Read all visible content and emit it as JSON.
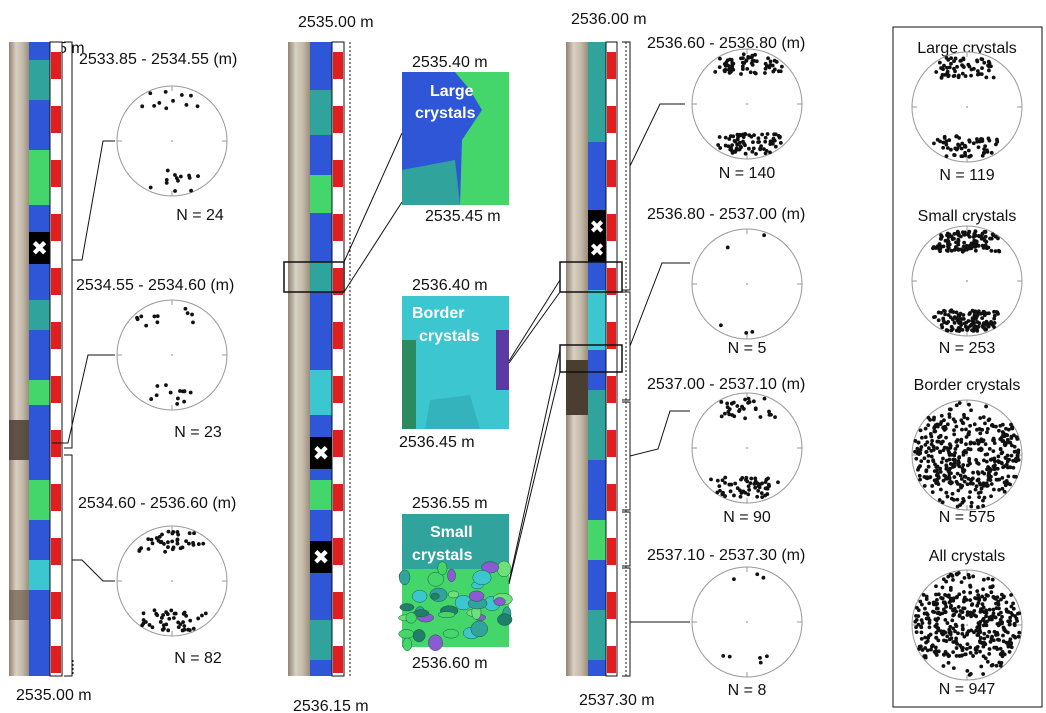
{
  "colors": {
    "core_light": "#c9bfae",
    "core_dark": "#4a3e31",
    "map_blue": "#2f56d6",
    "map_teal": "#2fa39c",
    "map_green": "#44d66a",
    "map_cyan": "#3cc7d0",
    "scale_red": "#e01e1e",
    "point": "#111111",
    "stereonet_edge": "#999999"
  },
  "icons": {
    "excluded_marker": "x-icon"
  },
  "columns": [
    {
      "top": "2533.85 m",
      "bottom": "2535.00 m"
    },
    {
      "top": "2535.00 m",
      "bottom": "2536.15 m"
    },
    {
      "top": "2536.00 m",
      "bottom": "2537.30 m"
    }
  ],
  "insets": [
    {
      "depth_top": "2535.40 m",
      "label_line1": "Large",
      "label_line2": "crystals",
      "depth_bottom": "2535.45 m"
    },
    {
      "depth_top": "2536.40 m",
      "label_line1": "Border",
      "label_line2": "crystals",
      "depth_bottom": "2536.45 m"
    },
    {
      "depth_top": "2536.55 m",
      "label_line1": "Small",
      "label_line2": "crystals",
      "depth_bottom": "2536.60 m"
    }
  ],
  "stereonets": [
    {
      "range": "2533.85 - 2534.55 (m)",
      "count": "N = 24"
    },
    {
      "range": "2534.55 - 2534.60 (m)",
      "count": "N = 23"
    },
    {
      "range": "2534.60 - 2536.60 (m)",
      "count": "N = 82"
    },
    {
      "range": "2536.60 - 2536.80 (m)",
      "count": "N = 140"
    },
    {
      "range": "2536.80 - 2537.00 (m)",
      "count": "N = 5"
    },
    {
      "range": "2537.00 - 2537.10 (m)",
      "count": "N = 90"
    },
    {
      "range": "2537.10 - 2537.30 (m)",
      "count": "N = 8"
    }
  ],
  "summary": [
    {
      "title": "Large crystals",
      "count": "N = 119"
    },
    {
      "title": "Small crystals",
      "count": "N = 253"
    },
    {
      "title": "Border crystals",
      "count": "N = 575"
    },
    {
      "title": "All crystals",
      "count": "N = 947"
    }
  ]
}
